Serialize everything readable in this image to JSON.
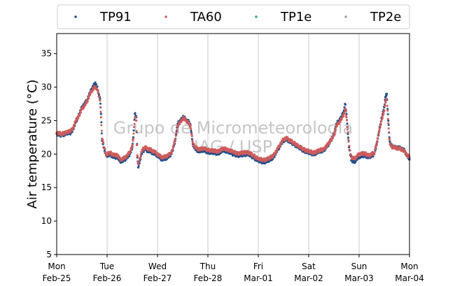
{
  "chart_data": {
    "type": "scatter",
    "ylabel": "Air temperature (°C)",
    "xlabel": "",
    "ylim": [
      5,
      38
    ],
    "y_ticks": [
      5,
      10,
      15,
      20,
      25,
      30,
      35
    ],
    "x_ticks": [
      {
        "day": 0,
        "line1": "Mon",
        "line2": "Feb-25"
      },
      {
        "day": 1,
        "line1": "Tue",
        "line2": "Feb-26"
      },
      {
        "day": 2,
        "line1": "Wed",
        "line2": "Feb-27"
      },
      {
        "day": 3,
        "line1": "Thu",
        "line2": "Feb-28"
      },
      {
        "day": 4,
        "line1": "Fri",
        "line2": "Mar-01"
      },
      {
        "day": 5,
        "line1": "Sat",
        "line2": "Mar-02"
      },
      {
        "day": 6,
        "line1": "Sun",
        "line2": "Mar-03"
      },
      {
        "day": 7,
        "line1": "Mon",
        "line2": "Mar-04"
      }
    ],
    "xlim_days": [
      0,
      7
    ],
    "grid": "vertical",
    "legend_position": "top",
    "watermark": {
      "line1": "Grupo de Micrometeorologia",
      "line2": "IAG / USP"
    },
    "series": [
      {
        "name": "TP91",
        "color": "#1f4e8c",
        "x": [
          0.0,
          0.1,
          0.2,
          0.28,
          0.33,
          0.38,
          0.45,
          0.5,
          0.55,
          0.6,
          0.65,
          0.7,
          0.75,
          0.78,
          0.8,
          0.82,
          0.84,
          0.86,
          0.88,
          0.9,
          0.92,
          0.95,
          0.98,
          1.0,
          1.03,
          1.06,
          1.1,
          1.15,
          1.2,
          1.25,
          1.3,
          1.35,
          1.4,
          1.45,
          1.5,
          1.52,
          1.55,
          1.58,
          1.6,
          1.62,
          1.65,
          1.68,
          1.72,
          1.75,
          1.8,
          1.85,
          1.9,
          1.95,
          2.0,
          2.05,
          2.1,
          2.15,
          2.2,
          2.25,
          2.3,
          2.35,
          2.4,
          2.45,
          2.5,
          2.52,
          2.55,
          2.58,
          2.62,
          2.65,
          2.7,
          2.75,
          2.8,
          2.85,
          2.9,
          3.0,
          3.1,
          3.2,
          3.3,
          3.4,
          3.5,
          3.6,
          3.7,
          3.8,
          3.9,
          4.0,
          4.1,
          4.2,
          4.3,
          4.35,
          4.4,
          4.45,
          4.5,
          4.55,
          4.6,
          4.7,
          4.8,
          4.9,
          5.0,
          5.1,
          5.2,
          5.3,
          5.4,
          5.5,
          5.55,
          5.6,
          5.65,
          5.7,
          5.72,
          5.75,
          5.8,
          5.85,
          5.9,
          5.95,
          6.0,
          6.1,
          6.2,
          6.3,
          6.35,
          6.4,
          6.45,
          6.5,
          6.52,
          6.55,
          6.58,
          6.6,
          6.62,
          6.65,
          6.7,
          6.75,
          6.8,
          6.85,
          6.9,
          6.95,
          7.0
        ],
        "y": [
          23.0,
          22.8,
          23.1,
          23.2,
          23.8,
          24.8,
          26.0,
          27.0,
          27.5,
          28.0,
          29.0,
          29.8,
          30.5,
          30.4,
          30.0,
          29.5,
          28.8,
          28.3,
          26.0,
          22.0,
          21.5,
          20.5,
          19.8,
          19.6,
          19.8,
          20.0,
          19.7,
          19.5,
          19.6,
          19.0,
          18.9,
          19.2,
          19.5,
          20.0,
          21.0,
          22.5,
          26.0,
          25.5,
          19.5,
          18.0,
          19.0,
          20.0,
          20.5,
          20.8,
          20.5,
          20.4,
          20.2,
          20.0,
          19.8,
          19.4,
          19.2,
          19.3,
          19.5,
          19.8,
          20.5,
          22.0,
          24.5,
          25.0,
          25.4,
          25.6,
          25.3,
          25.0,
          24.8,
          24.5,
          21.5,
          20.8,
          20.5,
          20.4,
          20.6,
          20.3,
          20.2,
          20.1,
          20.5,
          20.4,
          20.0,
          19.8,
          19.9,
          20.0,
          19.5,
          19.0,
          18.8,
          19.0,
          19.5,
          20.2,
          20.8,
          21.5,
          22.0,
          22.2,
          22.0,
          21.5,
          21.0,
          20.5,
          20.2,
          20.0,
          20.3,
          20.6,
          21.5,
          23.0,
          24.5,
          25.0,
          25.5,
          26.5,
          27.5,
          26.0,
          21.0,
          19.0,
          18.8,
          19.2,
          19.6,
          19.8,
          19.5,
          20.0,
          21.5,
          23.5,
          25.5,
          27.0,
          28.5,
          29.0,
          25.0,
          22.5,
          21.5,
          21.2,
          21.0,
          21.0,
          20.9,
          20.8,
          20.5,
          19.8,
          19.2
        ]
      },
      {
        "name": "TA60",
        "color": "#cd5c5c",
        "x": [
          0.0,
          0.1,
          0.2,
          0.28,
          0.33,
          0.38,
          0.45,
          0.5,
          0.55,
          0.6,
          0.65,
          0.7,
          0.75,
          0.78,
          0.8,
          0.82,
          0.84,
          0.86,
          0.88,
          0.9,
          0.92,
          0.95,
          0.98,
          1.0,
          1.03,
          1.06,
          1.1,
          1.15,
          1.2,
          1.25,
          1.3,
          1.35,
          1.4,
          1.45,
          1.5,
          1.52,
          1.55,
          1.58,
          1.6,
          1.62,
          1.65,
          1.68,
          1.72,
          1.75,
          1.8,
          1.85,
          1.9,
          1.95,
          2.0,
          2.05,
          2.1,
          2.15,
          2.2,
          2.25,
          2.3,
          2.35,
          2.4,
          2.45,
          2.5,
          2.52,
          2.55,
          2.58,
          2.62,
          2.65,
          2.7,
          2.75,
          2.8,
          2.85,
          2.9,
          3.0,
          3.1,
          3.2,
          3.3,
          3.4,
          3.5,
          3.6,
          3.7,
          3.8,
          3.9,
          4.0,
          4.1,
          4.2,
          4.3,
          4.35,
          4.4,
          4.45,
          4.5,
          4.55,
          4.6,
          4.7,
          4.8,
          4.9,
          5.0,
          5.1,
          5.2,
          5.3,
          5.4,
          5.5,
          5.55,
          5.6,
          5.65,
          5.7,
          5.72,
          5.75,
          5.8,
          5.85,
          5.9,
          5.95,
          6.0,
          6.1,
          6.2,
          6.3,
          6.35,
          6.4,
          6.45,
          6.5,
          6.52,
          6.55,
          6.58,
          6.6,
          6.62,
          6.65,
          6.7,
          6.75,
          6.8,
          6.85,
          6.9,
          6.95,
          7.0
        ],
        "y": [
          23.2,
          23.0,
          23.3,
          23.4,
          24.0,
          25.0,
          25.8,
          26.8,
          27.2,
          27.8,
          28.8,
          29.5,
          30.0,
          29.8,
          29.6,
          29.2,
          28.6,
          28.0,
          25.5,
          22.3,
          21.8,
          20.8,
          20.0,
          19.9,
          20.1,
          20.2,
          20.0,
          19.8,
          19.9,
          19.3,
          19.2,
          19.5,
          19.8,
          20.3,
          21.2,
          22.3,
          25.5,
          25.0,
          19.8,
          18.5,
          19.3,
          20.3,
          20.8,
          21.0,
          20.8,
          20.7,
          20.5,
          20.3,
          20.0,
          19.7,
          19.5,
          19.6,
          19.8,
          20.0,
          20.7,
          22.2,
          24.2,
          24.8,
          25.2,
          25.4,
          25.1,
          24.9,
          24.6,
          24.3,
          21.7,
          21.0,
          20.8,
          20.7,
          20.9,
          20.6,
          20.5,
          20.4,
          20.8,
          20.7,
          20.3,
          20.1,
          20.2,
          20.3,
          19.8,
          19.3,
          19.1,
          19.3,
          19.8,
          20.4,
          21.0,
          21.7,
          22.2,
          22.4,
          22.2,
          21.7,
          21.2,
          20.7,
          20.4,
          20.2,
          20.5,
          20.8,
          21.6,
          22.8,
          24.2,
          24.7,
          25.2,
          26.0,
          26.8,
          25.5,
          21.2,
          19.5,
          19.3,
          19.6,
          20.0,
          20.1,
          19.8,
          20.2,
          21.7,
          23.5,
          25.2,
          26.5,
          27.8,
          28.2,
          24.6,
          22.3,
          21.4,
          21.1,
          21.0,
          20.9,
          20.8,
          20.7,
          20.4,
          19.9,
          19.5
        ]
      },
      {
        "name": "TP1e",
        "color": "#2ca89a",
        "x": [],
        "y": []
      },
      {
        "name": "TP2e",
        "color": "#a89aa0",
        "x": [],
        "y": []
      }
    ]
  }
}
